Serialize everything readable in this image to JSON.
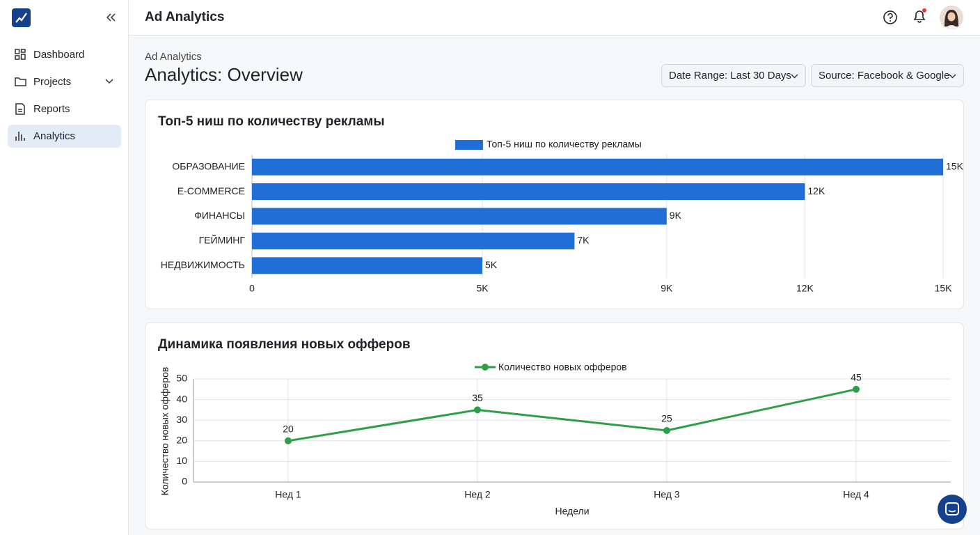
{
  "sidebar": {
    "nav": [
      "Dashboard",
      "Projects",
      "Reports",
      "Analytics"
    ]
  },
  "header": {
    "title": "Ad Analytics"
  },
  "page": {
    "breadcrumb": "Ad Analytics",
    "title": "Analytics: Overview",
    "filters": [
      "Date Range: Last 30 Days",
      "Source: Facebook & Google"
    ]
  },
  "chart_data": [
    {
      "type": "bar",
      "orientation": "horizontal",
      "title": "Топ-5 ниш по количеству рекламы",
      "categories": [
        "ОБРАЗОВАНИЕ",
        "E-COMMERCE",
        "ФИНАНСЫ",
        "ГЕЙМИНГ",
        "НЕДВИЖИМОСТЬ"
      ],
      "series": [
        {
          "name": "Топ-5 ниш по количеству рекламы",
          "color": "#1f6fd6",
          "values": [
            15000,
            12000,
            9000,
            7000,
            5000
          ],
          "value_labels": [
            "15K",
            "12K",
            "9K",
            "7K",
            "5K"
          ]
        }
      ],
      "xlim": [
        0,
        15000
      ],
      "xticks": [
        0,
        {
          "value": 5000,
          "label": "5K"
        },
        {
          "value": 9000,
          "label": "9K"
        },
        {
          "value": 12000,
          "label": "12K"
        },
        {
          "value": 15000,
          "label": "15K"
        }
      ],
      "grid": true
    },
    {
      "type": "line",
      "title": "Динамика появления новых офферов",
      "categories": [
        "Нед 1",
        "Нед 2",
        "Нед 3",
        "Нед 4"
      ],
      "series": [
        {
          "name": "Количество новых офферов",
          "color": "#2e9e48",
          "values": [
            20,
            35,
            25,
            45
          ]
        }
      ],
      "xlabel": "Недели",
      "ylabel": "Количество новых офферов",
      "ylim": [
        0,
        50
      ],
      "yticks": [
        0,
        10,
        20,
        30,
        40,
        50
      ],
      "grid": true
    }
  ]
}
